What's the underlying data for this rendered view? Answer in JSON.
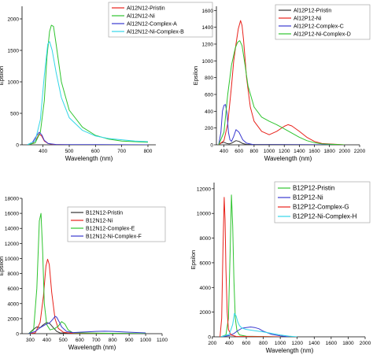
{
  "chart_data": [
    {
      "type": "line",
      "xlabel": "Wavelength (nm)",
      "ylabel": "Epsilon",
      "xlim": [
        320,
        830
      ],
      "ylim": [
        0,
        2200
      ],
      "xticks": [
        400,
        500,
        600,
        700,
        800
      ],
      "yticks": [
        0,
        500,
        1000,
        1500,
        2000
      ],
      "legend_position": "top-right",
      "series": [
        {
          "name": "Al12N12-Pristin",
          "color": "#e8211a",
          "x": [
            340,
            360,
            375,
            385,
            395,
            405,
            420,
            440,
            500,
            800
          ],
          "y": [
            0,
            20,
            90,
            170,
            140,
            60,
            20,
            5,
            0,
            0
          ]
        },
        {
          "name": "Al12N12-Ni",
          "color": "#2ec42e",
          "x": [
            340,
            370,
            390,
            405,
            415,
            425,
            432,
            440,
            450,
            470,
            500,
            550,
            600,
            650,
            700,
            750,
            800
          ],
          "y": [
            0,
            30,
            200,
            700,
            1400,
            1800,
            1900,
            1880,
            1600,
            1000,
            550,
            280,
            150,
            90,
            60,
            50,
            40
          ]
        },
        {
          "name": "Al12N12-Complex-A",
          "color": "#3a3ad0",
          "x": [
            340,
            360,
            375,
            385,
            395,
            405,
            420,
            450,
            800
          ],
          "y": [
            0,
            40,
            140,
            200,
            160,
            70,
            20,
            5,
            0
          ]
        },
        {
          "name": "Al12N12-Ni-Complex-B",
          "color": "#33d6e8",
          "x": [
            340,
            370,
            390,
            405,
            418,
            425,
            435,
            450,
            470,
            500,
            550,
            600,
            650,
            700,
            750,
            800
          ],
          "y": [
            0,
            60,
            400,
            1100,
            1600,
            1640,
            1500,
            1150,
            750,
            430,
            230,
            140,
            100,
            80,
            60,
            50
          ]
        }
      ]
    },
    {
      "type": "line",
      "xlabel": "Wavelength (nm)",
      "ylabel": "Epsilon",
      "xlim": [
        300,
        2200
      ],
      "ylim": [
        0,
        1650
      ],
      "xticks": [
        400,
        600,
        800,
        1000,
        1200,
        1400,
        1600,
        1800,
        2000,
        2200
      ],
      "yticks": [
        0,
        200,
        400,
        600,
        800,
        1000,
        1200,
        1400,
        1600
      ],
      "legend_position": "top-right",
      "series": [
        {
          "name": "Al12P12-Pristin",
          "color": "#333333",
          "x": [
            330,
            360,
            400,
            440,
            470,
            500,
            560,
            600,
            650,
            700,
            2000
          ],
          "y": [
            0,
            20,
            30,
            15,
            10,
            20,
            50,
            40,
            15,
            5,
            0
          ]
        },
        {
          "name": "Al12P12-Ni",
          "color": "#e8211a",
          "x": [
            330,
            400,
            450,
            500,
            530,
            560,
            590,
            620,
            640,
            660,
            700,
            750,
            800,
            900,
            1000,
            1100,
            1200,
            1250,
            1300,
            1400,
            1500,
            1600,
            1700,
            2000
          ],
          "y": [
            0,
            50,
            250,
            700,
            1000,
            1200,
            1380,
            1480,
            1420,
            1250,
            800,
            450,
            280,
            160,
            120,
            160,
            220,
            240,
            225,
            160,
            90,
            40,
            15,
            0
          ]
        },
        {
          "name": "Al12P12-Complex-C",
          "color": "#3a3ad0",
          "x": [
            330,
            360,
            380,
            400,
            420,
            440,
            460,
            480,
            500,
            530,
            560,
            600,
            650,
            700,
            800,
            2000
          ],
          "y": [
            0,
            150,
            400,
            470,
            480,
            380,
            150,
            60,
            40,
            100,
            180,
            150,
            60,
            20,
            0,
            0
          ]
        },
        {
          "name": "Al12P12-Ni-Complex-D",
          "color": "#2ec42e",
          "x": [
            330,
            400,
            450,
            500,
            550,
            580,
            610,
            640,
            680,
            720,
            800,
            900,
            1000,
            1100,
            1200,
            1300,
            1400,
            1500,
            1600,
            1700,
            2000
          ],
          "y": [
            0,
            150,
            600,
            950,
            1150,
            1220,
            1240,
            1180,
            950,
            700,
            450,
            330,
            280,
            240,
            190,
            140,
            90,
            50,
            25,
            10,
            0
          ]
        }
      ]
    },
    {
      "type": "line",
      "xlabel": "Wavelength (nm)",
      "ylabel": "Epsilon",
      "xlim": [
        250,
        1100
      ],
      "ylim": [
        0,
        18000
      ],
      "xticks": [
        300,
        400,
        500,
        600,
        700,
        800,
        900,
        1000,
        1100
      ],
      "yticks": [
        0,
        2000,
        4000,
        6000,
        8000,
        10000,
        12000,
        14000,
        16000,
        18000
      ],
      "legend_position": "top-right",
      "series": [
        {
          "name": "B12N12-Pristin",
          "color": "#333333",
          "x": [
            290,
            320,
            340,
            360,
            380,
            400,
            420,
            440,
            460,
            480,
            1000
          ],
          "y": [
            0,
            600,
            900,
            800,
            1200,
            1500,
            1300,
            800,
            300,
            100,
            0
          ]
        },
        {
          "name": "B12N12-Ni",
          "color": "#e8211a",
          "x": [
            290,
            330,
            360,
            380,
            395,
            405,
            415,
            430,
            450,
            470,
            500,
            550,
            1000
          ],
          "y": [
            0,
            100,
            1500,
            5000,
            9000,
            9900,
            9200,
            5500,
            2000,
            700,
            200,
            50,
            0
          ]
        },
        {
          "name": "B12N12-Complex-E",
          "color": "#2ec42e",
          "x": [
            290,
            320,
            340,
            355,
            365,
            375,
            385,
            400,
            420,
            450,
            470,
            490,
            510,
            530,
            560,
            1000
          ],
          "y": [
            0,
            500,
            6000,
            15000,
            16000,
            11000,
            4000,
            1200,
            500,
            700,
            1000,
            1600,
            1300,
            500,
            100,
            0
          ]
        },
        {
          "name": "B12N12-Ni-Complex-F",
          "color": "#3a3ad0",
          "x": [
            290,
            330,
            360,
            400,
            420,
            440,
            450,
            460,
            475,
            490,
            520,
            560,
            600,
            650,
            700,
            750,
            800,
            900,
            1000
          ],
          "y": [
            0,
            300,
            800,
            1300,
            1500,
            2000,
            2300,
            2200,
            1600,
            900,
            300,
            150,
            200,
            250,
            300,
            320,
            300,
            200,
            100
          ]
        }
      ]
    },
    {
      "type": "line",
      "xlabel": "Wavelength (nm)",
      "ylabel": "Epsilon",
      "xlim": [
        220,
        2000
      ],
      "ylim": [
        0,
        12500
      ],
      "xticks": [
        200,
        400,
        600,
        800,
        1000,
        1200,
        1400,
        1600,
        1800,
        2000
      ],
      "yticks": [
        0,
        2000,
        4000,
        6000,
        8000,
        10000,
        12000
      ],
      "legend_position": "top-right",
      "series": [
        {
          "name": "B12P12-Pristin",
          "color": "#2ec42e",
          "x": [
            300,
            360,
            390,
            410,
            425,
            440,
            455,
            470,
            490,
            520,
            600,
            1000
          ],
          "y": [
            0,
            150,
            1500,
            7000,
            11500,
            9000,
            4500,
            1500,
            500,
            150,
            50,
            0
          ]
        },
        {
          "name": "B12P12-Ni",
          "color": "#3a3ad0",
          "x": [
            300,
            400,
            450,
            500,
            550,
            600,
            650,
            700,
            750,
            800,
            900,
            1000,
            1100
          ],
          "y": [
            0,
            100,
            250,
            500,
            700,
            750,
            800,
            750,
            650,
            450,
            200,
            80,
            0
          ]
        },
        {
          "name": "B12P12-Complex-G",
          "color": "#e8211a",
          "x": [
            290,
            310,
            325,
            340,
            350,
            360,
            375,
            390,
            420,
            480,
            1000
          ],
          "y": [
            0,
            1500,
            7000,
            11300,
            9500,
            5500,
            2000,
            600,
            150,
            30,
            0
          ]
        },
        {
          "name": "B12P12-Ni-Complex-H",
          "color": "#33d6e8",
          "x": [
            300,
            400,
            440,
            460,
            480,
            500,
            520,
            550,
            600,
            700,
            800,
            900,
            1000,
            1100,
            1200
          ],
          "y": [
            0,
            200,
            1000,
            1900,
            1700,
            1200,
            900,
            700,
            600,
            500,
            400,
            280,
            150,
            60,
            0
          ]
        }
      ]
    }
  ]
}
